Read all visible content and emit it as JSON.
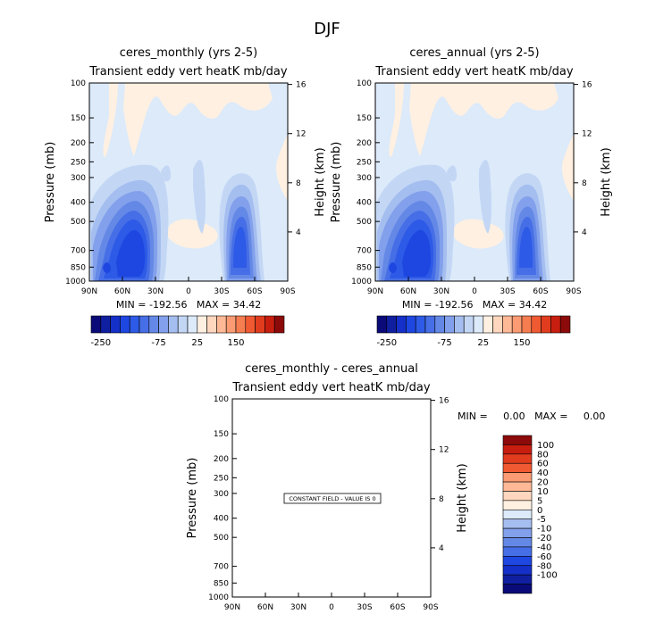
{
  "figure": {
    "title": "DJF"
  },
  "chart_data": [
    {
      "type": "contour",
      "title": "ceres_monthly (yrs 2-5)",
      "subtitle": "Transient eddy vert heatK mb/day",
      "ylabel": "Pressure (mb)",
      "y2label": "Height (km)",
      "x_ticks": [
        "90N",
        "60N",
        "30N",
        "0",
        "30S",
        "60S",
        "90S"
      ],
      "y_ticks": [
        "100",
        "150",
        "200",
        "250",
        "300",
        "400",
        "500",
        "700",
        "850",
        "1000"
      ],
      "y2_ticks": [
        "16",
        "12",
        "8",
        "4"
      ],
      "stats": "MIN = -192.56   MAX = 34.42",
      "colorbar": {
        "colors": [
          "#0a0a78",
          "#0f1fa0",
          "#1430c8",
          "#1e46e1",
          "#2d5ae6",
          "#466ee6",
          "#6488e6",
          "#82a0eb",
          "#a5bef0",
          "#c3d7f5",
          "#dceafa",
          "#fff0e1",
          "#ffd7be",
          "#ffb996",
          "#fa9b73",
          "#f57d50",
          "#f05a32",
          "#e13c1e",
          "#c81e0f",
          "#8c0a0a"
        ],
        "labels": [
          "-250",
          "-75",
          "25",
          "150"
        ]
      }
    },
    {
      "type": "contour",
      "title": "ceres_annual (yrs 2-5)",
      "subtitle": "Transient eddy vert heatK mb/day",
      "ylabel": "Pressure (mb)",
      "y2label": "Height (km)",
      "x_ticks": [
        "90N",
        "60N",
        "30N",
        "0",
        "30S",
        "60S",
        "90S"
      ],
      "y_ticks": [
        "100",
        "150",
        "200",
        "250",
        "300",
        "400",
        "500",
        "700",
        "850",
        "1000"
      ],
      "y2_ticks": [
        "16",
        "12",
        "8",
        "4"
      ],
      "stats": "MIN = -192.56   MAX = 34.42",
      "colorbar": {
        "colors": [
          "#0a0a78",
          "#0f1fa0",
          "#1430c8",
          "#1e46e1",
          "#2d5ae6",
          "#466ee6",
          "#6488e6",
          "#82a0eb",
          "#a5bef0",
          "#c3d7f5",
          "#dceafa",
          "#fff0e1",
          "#ffd7be",
          "#ffb996",
          "#fa9b73",
          "#f57d50",
          "#f05a32",
          "#e13c1e",
          "#c81e0f",
          "#8c0a0a"
        ],
        "labels": [
          "-250",
          "-75",
          "25",
          "150"
        ]
      }
    },
    {
      "type": "contour",
      "title": "ceres_monthly - ceres_annual",
      "subtitle": "Transient eddy vert heatK mb/day",
      "ylabel": "Pressure (mb)",
      "y2label": "Height (km)",
      "x_ticks": [
        "90N",
        "60N",
        "30N",
        "0",
        "30S",
        "60S",
        "90S"
      ],
      "y_ticks": [
        "100",
        "150",
        "200",
        "250",
        "300",
        "400",
        "500",
        "700",
        "850",
        "1000"
      ],
      "y2_ticks": [
        "16",
        "12",
        "8",
        "4"
      ],
      "stats": "MIN =     0.00   MAX =     0.00",
      "annotation": "CONSTANT FIELD - VALUE IS 0",
      "colorbar": {
        "colors": [
          "#8c0a0a",
          "#c81e0f",
          "#e13c1e",
          "#f05a32",
          "#fa9b73",
          "#ffb996",
          "#ffd7be",
          "#fff0e1",
          "#dceafa",
          "#a5bef0",
          "#82a0eb",
          "#6488e6",
          "#466ee6",
          "#1e46e1",
          "#1430c8",
          "#0f1fa0",
          "#0a0a78"
        ],
        "labels": [
          "100",
          "80",
          "60",
          "40",
          "20",
          "10",
          "5",
          "0",
          "-5",
          "-10",
          "-20",
          "-40",
          "-60",
          "-80",
          "-100"
        ]
      }
    }
  ]
}
